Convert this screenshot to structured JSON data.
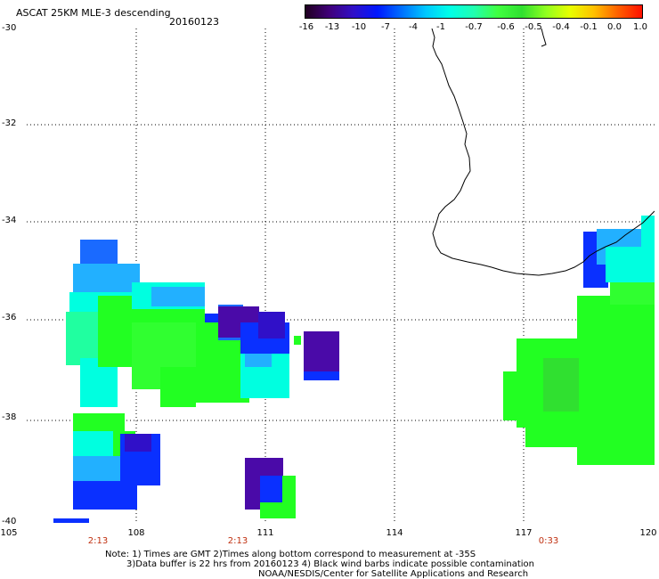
{
  "header": {
    "title": "ASCAT 25KM MLE-3 descending",
    "date": "20160123"
  },
  "legend": {
    "labels": [
      "-16",
      "-13",
      "-10",
      "-7",
      "-4",
      "-1",
      "-0.7",
      "-0.6",
      "-0.5",
      "-0.4",
      "-0.1",
      "0.0",
      "1.0"
    ]
  },
  "axes": {
    "y_labels": [
      "-30",
      "-32",
      "-34",
      "-36",
      "-38",
      "-40"
    ],
    "x_labels": [
      "105",
      "108",
      "111",
      "114",
      "117",
      "120"
    ],
    "time_labels": [
      "2:13",
      "2:13",
      "0:33"
    ]
  },
  "notes": {
    "line1": "Note: 1) Times are GMT 2)Times along bottom correspond to measurement at -35S",
    "line2": "3)Data buffer is 22 hrs from 20160123 4) Black wind barbs indicate possible contamination",
    "line3": "NOAA/NESDIS/Center for Satellite Applications and Research"
  },
  "colors": {
    "dark_purple": "#4a0aa8",
    "blue": "#0a30ff",
    "mid_blue": "#1a6aff",
    "light_blue": "#22b0ff",
    "cyan": "#00ffe0",
    "aqua_green": "#20ffa0",
    "green": "#22ff22",
    "bright_green": "#30ff30",
    "coast": "#000000"
  }
}
